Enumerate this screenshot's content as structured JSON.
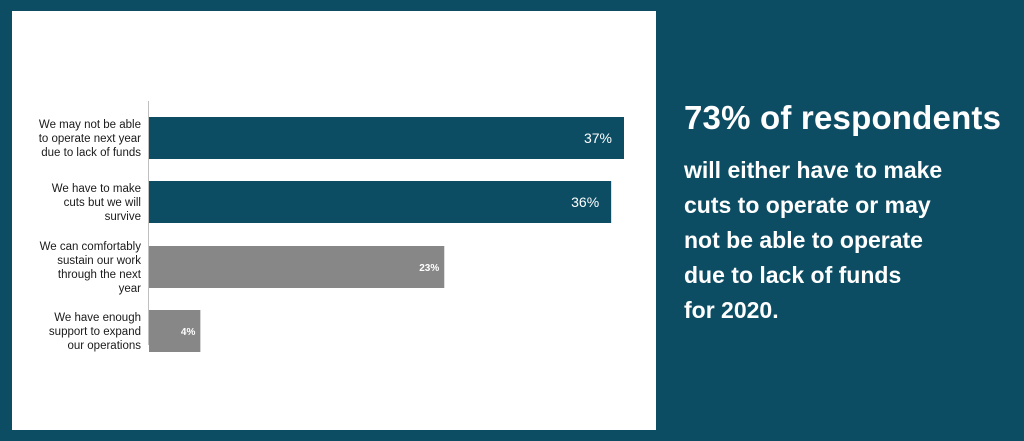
{
  "colors": {
    "background": "#0d4d63",
    "bar_primary": "#0d4d63",
    "bar_secondary": "#878787",
    "text_light": "#ffffff"
  },
  "chart_data": {
    "type": "bar",
    "orientation": "horizontal",
    "categories": [
      [
        "We may not be able",
        "to operate next year",
        "due to lack of funds"
      ],
      [
        "We have to make",
        "cuts but we will",
        "survive"
      ],
      [
        "We can comfortably",
        "sustain our work",
        "through the next",
        "year"
      ],
      [
        "We have enough",
        "support to expand",
        "our operations"
      ]
    ],
    "values": [
      37,
      36,
      23,
      4
    ],
    "value_labels": [
      "37%",
      "36%",
      "23%",
      "4%"
    ],
    "bar_colors": [
      "#0d4d63",
      "#0d4d63",
      "#878787",
      "#878787"
    ],
    "xlim": [
      0,
      37
    ],
    "grid": false
  },
  "callout": {
    "headline": "73% of respondents",
    "lines": [
      "will either have to make",
      "cuts to operate or may",
      "not be able to operate",
      "due to lack of funds",
      "for 2020."
    ]
  }
}
